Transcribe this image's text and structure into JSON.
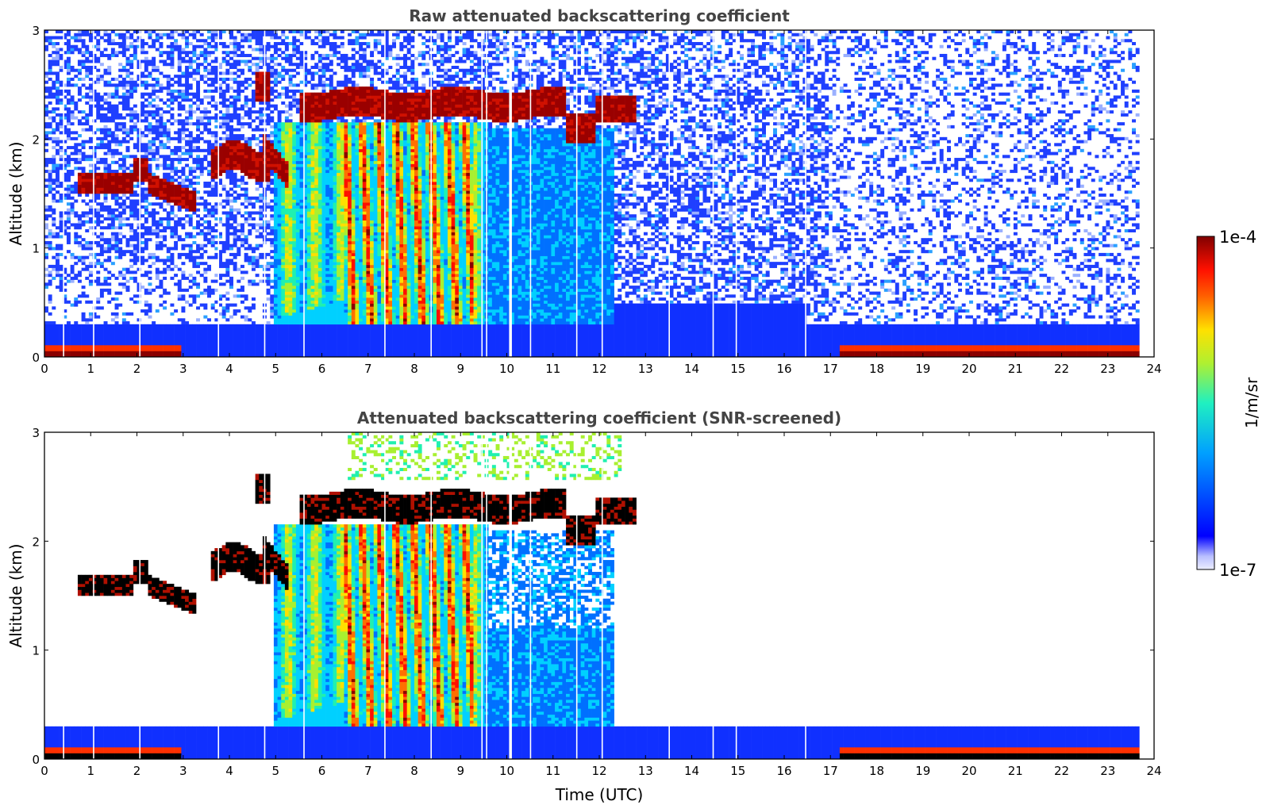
{
  "chart_data": [
    {
      "type": "heatmap",
      "title": "Raw attenuated backscattering coefficient",
      "xlabel": "",
      "ylabel": "Altitude (km)",
      "xlim": [
        0,
        24
      ],
      "ylim": [
        0,
        3
      ],
      "x_ticks": [
        "0",
        "1",
        "2",
        "3",
        "4",
        "5",
        "6",
        "7",
        "8",
        "9",
        "10",
        "11",
        "12",
        "13",
        "14",
        "15",
        "16",
        "17",
        "18",
        "19",
        "20",
        "21",
        "22",
        "23",
        "24"
      ],
      "y_ticks": [
        "0",
        "1",
        "2",
        "3"
      ],
      "features": [
        {
          "name": "cloud-layer-1",
          "t_start": 0.45,
          "t_end": 3.3,
          "alt_km": [
            1.35,
            1.85
          ]
        },
        {
          "name": "cloud-layer-2",
          "t_start": 3.5,
          "t_end": 5.3,
          "alt_km": [
            1.55,
            2.1
          ]
        },
        {
          "name": "cloud-layer-3",
          "t_start": 4.6,
          "t_end": 12.8,
          "alt_km": [
            2.15,
            2.55
          ]
        },
        {
          "name": "precipitation",
          "t_start": 5.0,
          "t_end": 9.5,
          "alt_km": [
            0,
            2.1
          ]
        },
        {
          "name": "boundary-layer",
          "t_start": 0,
          "t_end": 23.65,
          "alt_km": [
            0,
            0.3
          ]
        }
      ],
      "data_end_hour": 23.65
    },
    {
      "type": "heatmap",
      "title": "Attenuated backscattering coefficient (SNR-screened)",
      "xlabel": "Time (UTC)",
      "ylabel": "Altitude (km)",
      "xlim": [
        0,
        24
      ],
      "ylim": [
        0,
        3
      ],
      "x_ticks": [
        "0",
        "1",
        "2",
        "3",
        "4",
        "5",
        "6",
        "7",
        "8",
        "9",
        "10",
        "11",
        "12",
        "13",
        "14",
        "15",
        "16",
        "17",
        "18",
        "19",
        "20",
        "21",
        "22",
        "23",
        "24"
      ],
      "y_ticks": [
        "0",
        "1",
        "2",
        "3"
      ],
      "screened_above_km": 0.3,
      "data_end_hour": 23.65
    }
  ],
  "colorbar": {
    "label": "1/m/sr",
    "max_label": "1e-4",
    "min_label": "1e-7",
    "scale": "log",
    "range": [
      1e-07,
      0.0001
    ],
    "colormap": "jet"
  },
  "colors": {
    "title": "#444444",
    "axis": "#000000",
    "noise_blue": "#1f3fff",
    "cloud_red": "#8b0000",
    "precip_yellow": "#f0e020"
  }
}
